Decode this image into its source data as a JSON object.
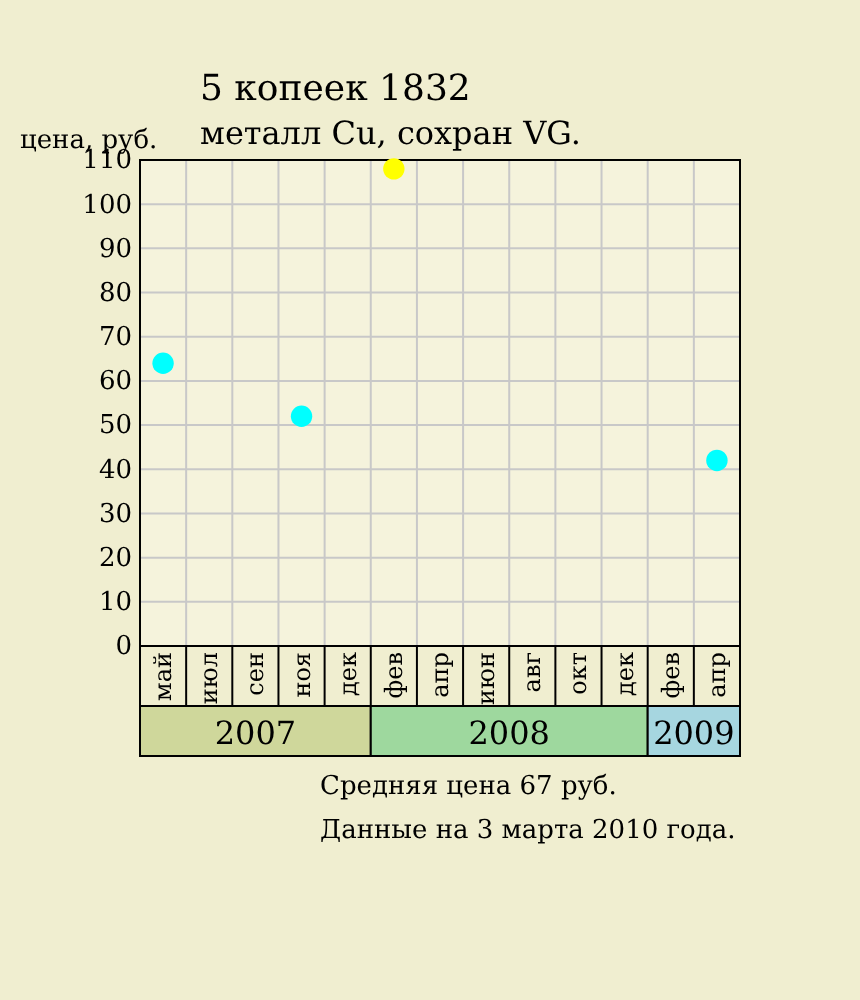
{
  "chart_data": {
    "type": "scatter",
    "title": "5 копеек 1832",
    "subtitle": "металл Cu, сохран VG.",
    "ylabel": "цена, руб.",
    "categories": [
      "май",
      "июл",
      "сен",
      "ноя",
      "дек",
      "фев",
      "апр",
      "июн",
      "авг",
      "окт",
      "дек",
      "фев",
      "апр"
    ],
    "series": [
      {
        "color": "#00ffff",
        "values": [
          64,
          null,
          null,
          52,
          null,
          null,
          null,
          null,
          null,
          null,
          null,
          null,
          42
        ]
      },
      {
        "color": "#ffff00",
        "values": [
          null,
          null,
          null,
          null,
          null,
          108,
          null,
          null,
          null,
          null,
          null,
          null,
          null
        ]
      }
    ],
    "ylim": [
      0,
      110
    ],
    "yticks": [
      0,
      10,
      20,
      30,
      40,
      50,
      60,
      70,
      80,
      90,
      100,
      110
    ],
    "grid": true,
    "marker": "circle",
    "annotations": [
      "2007",
      "2008",
      "2009",
      "Средняя цена 67 руб.",
      "Данные на 3 марта 2010 года."
    ]
  }
}
